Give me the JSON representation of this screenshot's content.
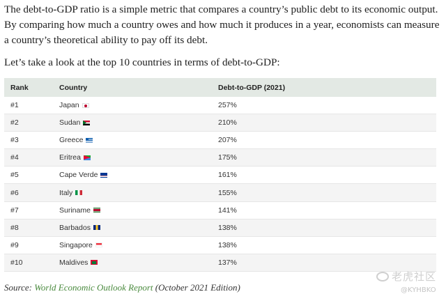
{
  "intro_text": "The debt-to-GDP ratio is a simple metric that compares a country’s public debt to its economic output. By comparing how much a country owes and how much it produces in a year, economists can measure a country’s theoretical ability to pay off its debt.",
  "lead_text": "Let’s take a look at the top 10 countries in terms of debt-to-GDP:",
  "table": {
    "headers": {
      "rank": "Rank",
      "country": "Country",
      "value": "Debt-to-GDP (2021)"
    },
    "rows": [
      {
        "rank": "#1",
        "country": "Japan",
        "value": "257%",
        "flag": "japan-flag-icon"
      },
      {
        "rank": "#2",
        "country": "Sudan",
        "value": "210%",
        "flag": "sudan-flag-icon"
      },
      {
        "rank": "#3",
        "country": "Greece",
        "value": "207%",
        "flag": "greece-flag-icon"
      },
      {
        "rank": "#4",
        "country": "Eritrea",
        "value": "175%",
        "flag": "eritrea-flag-icon"
      },
      {
        "rank": "#5",
        "country": "Cape Verde",
        "value": "161%",
        "flag": "cape-verde-flag-icon"
      },
      {
        "rank": "#6",
        "country": "Italy",
        "value": "155%",
        "flag": "italy-flag-icon"
      },
      {
        "rank": "#7",
        "country": "Suriname",
        "value": "141%",
        "flag": "suriname-flag-icon"
      },
      {
        "rank": "#8",
        "country": "Barbados",
        "value": "138%",
        "flag": "barbados-flag-icon"
      },
      {
        "rank": "#9",
        "country": "Singapore",
        "value": "138%",
        "flag": "singapore-flag-icon"
      },
      {
        "rank": "#10",
        "country": "Maldives",
        "value": "137%",
        "flag": "maldives-flag-icon"
      }
    ]
  },
  "source": {
    "prefix": "Source:",
    "link_text": "World Economic Outlook Report",
    "suffix": "(October 2021 Edition)",
    "link_color": "#4a8a3e"
  },
  "watermark": {
    "line1": "老虎社区",
    "line2": "@KYHBKO"
  }
}
